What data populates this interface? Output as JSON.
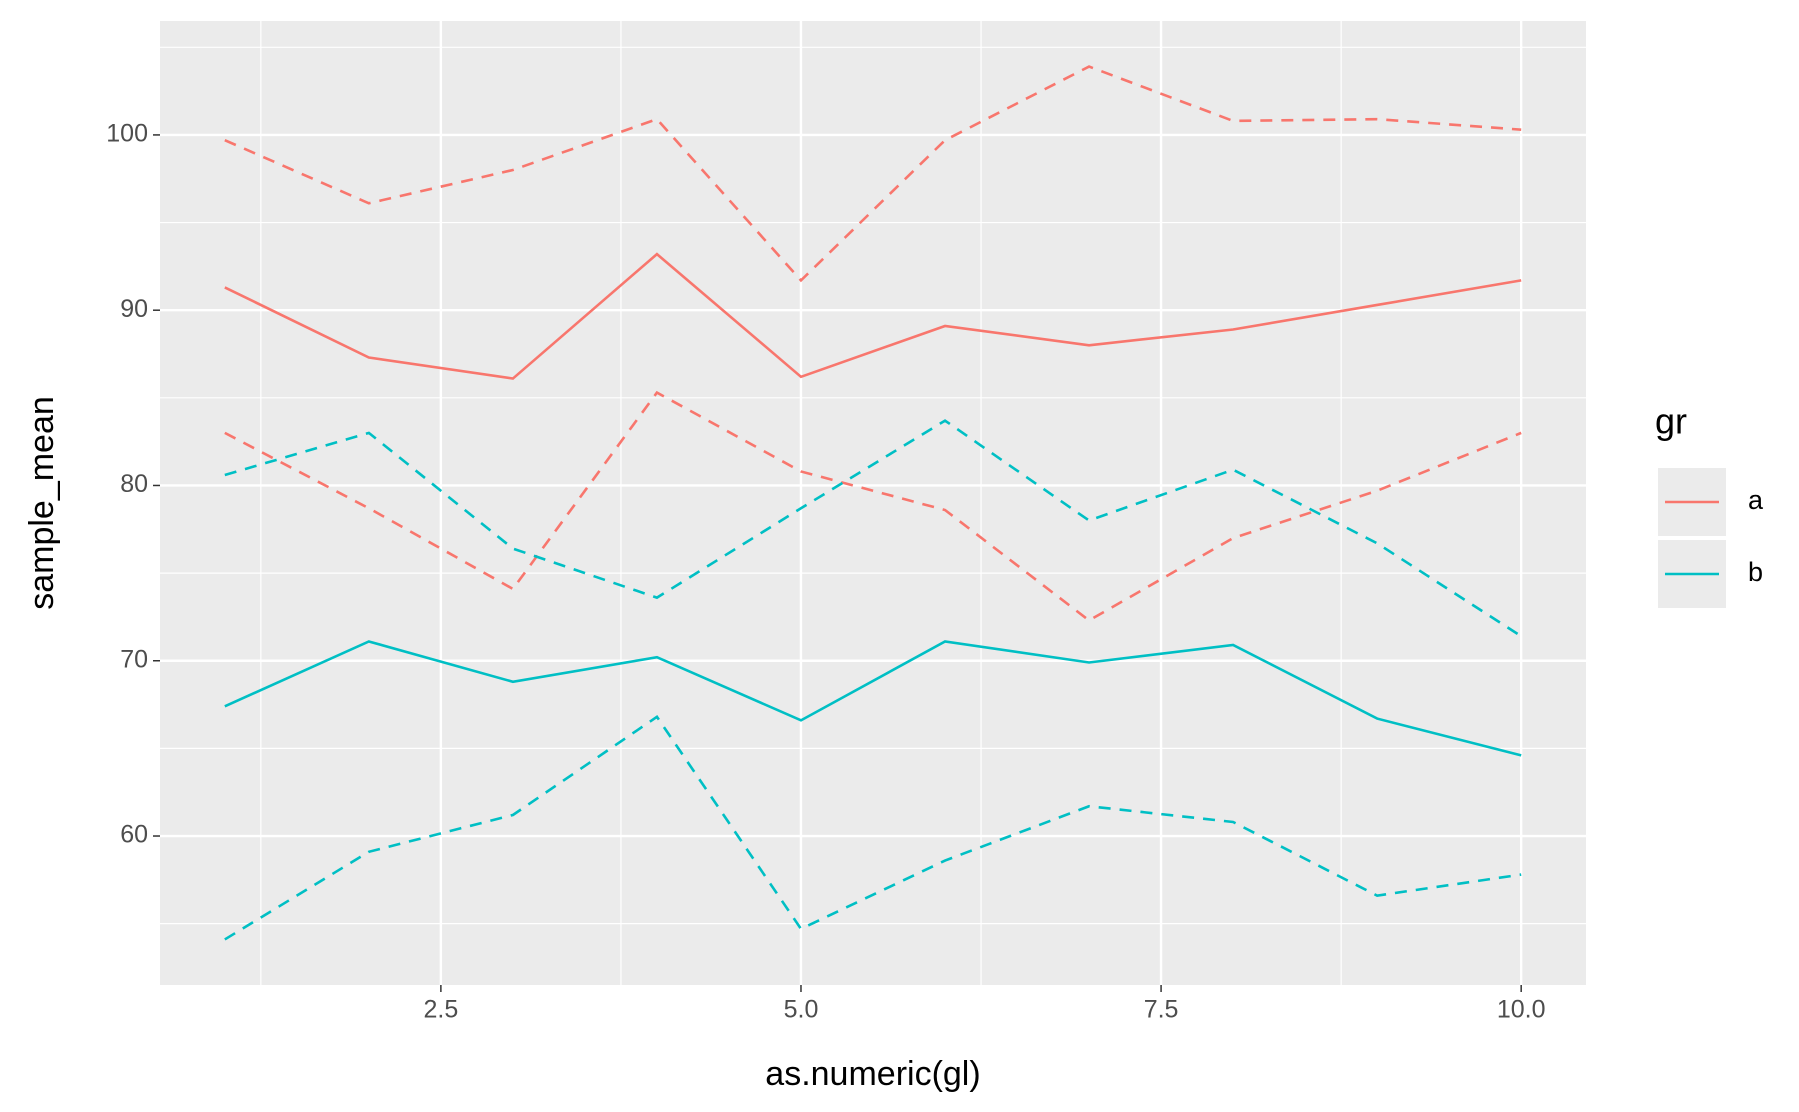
{
  "chart_data": {
    "type": "line",
    "x_label": "as.numeric(gl)",
    "y_label": "sample_mean",
    "x": [
      1,
      2,
      3,
      4,
      5,
      6,
      7,
      8,
      9,
      10
    ],
    "series": [
      {
        "name": "a",
        "color": "#F8766D",
        "linetype": "solid",
        "values": [
          91.3,
          87.3,
          86.1,
          93.2,
          86.2,
          89.1,
          88.0,
          88.9,
          90.3,
          91.7
        ]
      },
      {
        "name": "a",
        "color": "#F8766D",
        "linetype": "dashed",
        "values": [
          99.7,
          96.1,
          98.0,
          100.9,
          91.7,
          99.7,
          103.9,
          100.8,
          100.9,
          100.3
        ]
      },
      {
        "name": "a",
        "color": "#F8766D",
        "linetype": "dashed",
        "values": [
          83.0,
          78.7,
          74.1,
          85.3,
          80.8,
          78.6,
          72.3,
          77.0,
          79.7,
          83.0
        ]
      },
      {
        "name": "b",
        "color": "#00BFC4",
        "linetype": "solid",
        "values": [
          67.4,
          71.1,
          68.8,
          70.2,
          66.6,
          71.1,
          69.9,
          70.9,
          66.7,
          64.6
        ]
      },
      {
        "name": "b",
        "color": "#00BFC4",
        "linetype": "dashed",
        "values": [
          80.6,
          83.0,
          76.4,
          73.6,
          78.7,
          83.7,
          78.0,
          80.9,
          76.7,
          71.4
        ]
      },
      {
        "name": "b",
        "color": "#00BFC4",
        "linetype": "dashed",
        "values": [
          54.1,
          59.1,
          61.2,
          66.8,
          54.7,
          58.6,
          61.7,
          60.8,
          56.6,
          57.8
        ]
      }
    ],
    "legend_title": "gr",
    "legend": "right",
    "xlim": [
      0.55,
      10.45
    ],
    "xticks": [
      {
        "value": 2.5,
        "label": "2.5"
      },
      {
        "value": 5,
        "label": "5.0"
      },
      {
        "value": 7.5,
        "label": "7.5"
      },
      {
        "value": 10,
        "label": "10.0"
      }
    ],
    "xminor": [
      1.25,
      3.75,
      6.25,
      8.75
    ],
    "ylim": [
      51.5,
      106.5
    ],
    "yticks": [
      60,
      70,
      80,
      90,
      100
    ],
    "yminor": [
      55,
      65,
      75,
      85,
      95,
      105
    ],
    "grid": true
  }
}
